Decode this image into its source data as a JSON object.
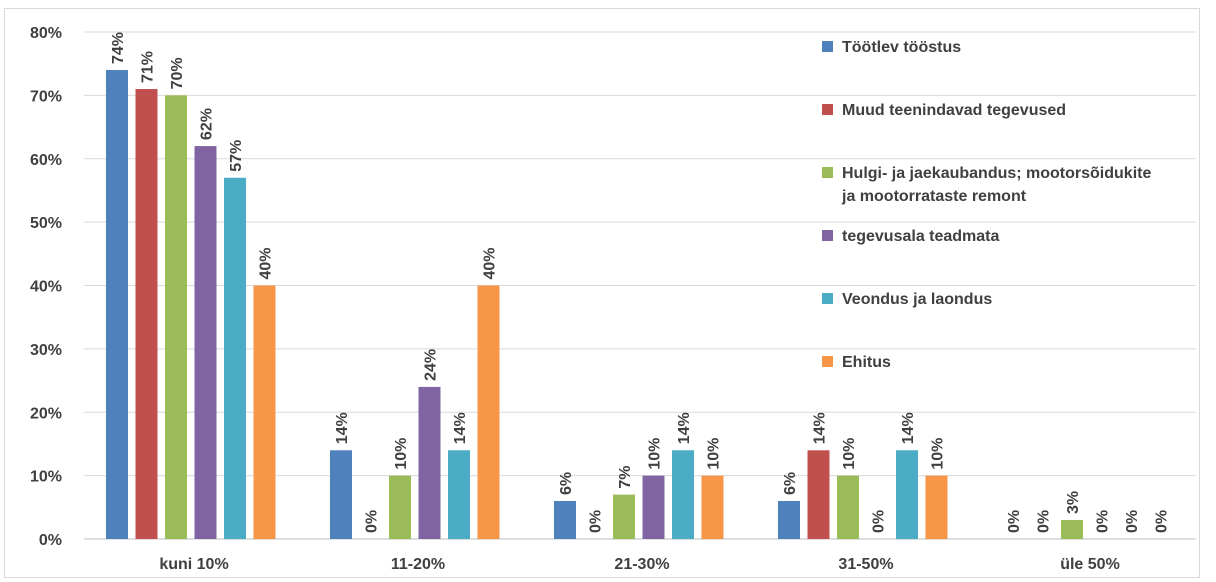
{
  "chart_data": {
    "type": "bar",
    "categories": [
      "kuni 10%",
      "11-20%",
      "21-30%",
      "31-50%",
      "üle 50%"
    ],
    "series": [
      {
        "name": "Töötlev tööstus",
        "color": "#4f81bd",
        "values": [
          74,
          14,
          6,
          6,
          0
        ]
      },
      {
        "name": "Muud teenindavad tegevused",
        "color": "#c0504d",
        "values": [
          71,
          0,
          0,
          14,
          0
        ]
      },
      {
        "name": "Hulgi- ja jaekaubandus; mootorsõidukite ja mootorrataste remont",
        "color": "#9bbb59",
        "values": [
          70,
          10,
          7,
          10,
          3
        ]
      },
      {
        "name": "tegevusala teadmata",
        "color": "#8064a2",
        "values": [
          62,
          24,
          10,
          0,
          0
        ]
      },
      {
        "name": "Veondus ja laondus",
        "color": "#4bacc6",
        "values": [
          57,
          14,
          14,
          14,
          0
        ]
      },
      {
        "name": "Ehitus",
        "color": "#f79646",
        "values": [
          40,
          40,
          10,
          10,
          0
        ]
      }
    ],
    "yticks": [
      "0%",
      "10%",
      "20%",
      "30%",
      "40%",
      "50%",
      "60%",
      "70%",
      "80%"
    ],
    "ylim": [
      0,
      80
    ],
    "value_suffix": "%",
    "grid": true,
    "legend_position": "right",
    "title": "",
    "xlabel": "",
    "ylabel": ""
  }
}
